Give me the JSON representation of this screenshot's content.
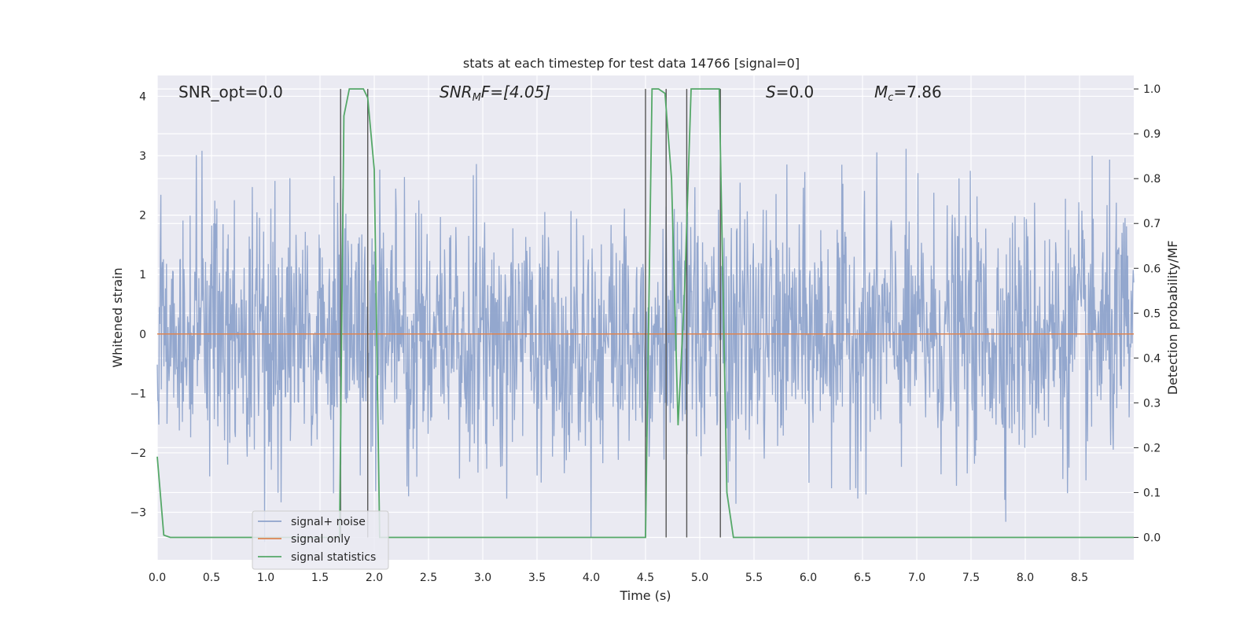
{
  "chart_data": {
    "type": "line",
    "title": "stats at each timestep for test data 14766 [signal=0]",
    "xlabel": "Time (s)",
    "ylabel": "Whitened strain",
    "ylabel_right": "Detection probability/MF",
    "xlim": [
      0.0,
      9.0
    ],
    "ylim": [
      -3.8,
      4.35
    ],
    "ylim_right": [
      -0.05,
      1.03
    ],
    "x_ticks": [
      "0.0",
      "0.5",
      "1.0",
      "1.5",
      "2.0",
      "2.5",
      "3.0",
      "3.5",
      "4.0",
      "4.5",
      "5.0",
      "5.5",
      "6.0",
      "6.5",
      "7.0",
      "7.5",
      "8.0",
      "8.5"
    ],
    "y_ticks": [
      "4",
      "3",
      "2",
      "1",
      "0",
      "−1",
      "−2",
      "−3"
    ],
    "y_ticks_right": [
      "1.0",
      "0.9",
      "0.8",
      "0.7",
      "0.6",
      "0.5",
      "0.4",
      "0.3",
      "0.2",
      "0.1",
      "0.0"
    ],
    "grid": true,
    "legend_position": "lower-left",
    "colors": {
      "background": "#eaeaf2",
      "grid": "#ffffff",
      "signal_noise": "#8ea3cb",
      "signal_only": "#dd8452",
      "signal_statistics": "#55a868",
      "marker_lines": "#555555"
    },
    "annotations": {
      "snr_opt": "SNR_opt=0.0",
      "snr_mf_main": "SNR",
      "snr_mf_sub": "M",
      "snr_mf_tail": "F=[4.05]",
      "s_main": "S",
      "s_tail": "=0.0",
      "mc_main": "M",
      "mc_sub": "c",
      "mc_tail": "=7.86"
    },
    "series": [
      {
        "name": "signal+ noise",
        "note": "whitened strain noise, amplitude roughly within [-3.5, 4.0]"
      },
      {
        "name": "signal only",
        "x": [
          0.0,
          9.0
        ],
        "y": [
          0.0,
          0.0
        ]
      },
      {
        "name": "signal statistics",
        "x": [
          0.0,
          0.06,
          0.12,
          1.68,
          1.72,
          1.77,
          1.82,
          1.9,
          1.94,
          2.0,
          2.05,
          2.1,
          4.45,
          4.5,
          4.56,
          4.62,
          4.68,
          4.74,
          4.8,
          4.86,
          4.92,
          4.98,
          5.05,
          5.12,
          5.18,
          5.25,
          5.31,
          9.0
        ],
        "y": [
          0.18,
          0.005,
          0.0,
          0.0,
          0.94,
          1.0,
          1.0,
          1.0,
          0.98,
          0.82,
          0.0,
          0.0,
          0.0,
          0.0,
          1.0,
          1.0,
          0.99,
          0.8,
          0.25,
          0.55,
          1.0,
          1.0,
          1.0,
          1.0,
          1.0,
          0.1,
          0.0,
          0.0
        ]
      }
    ],
    "vertical_markers": [
      1.69,
      1.94,
      4.5,
      4.69,
      4.88,
      5.19
    ]
  }
}
